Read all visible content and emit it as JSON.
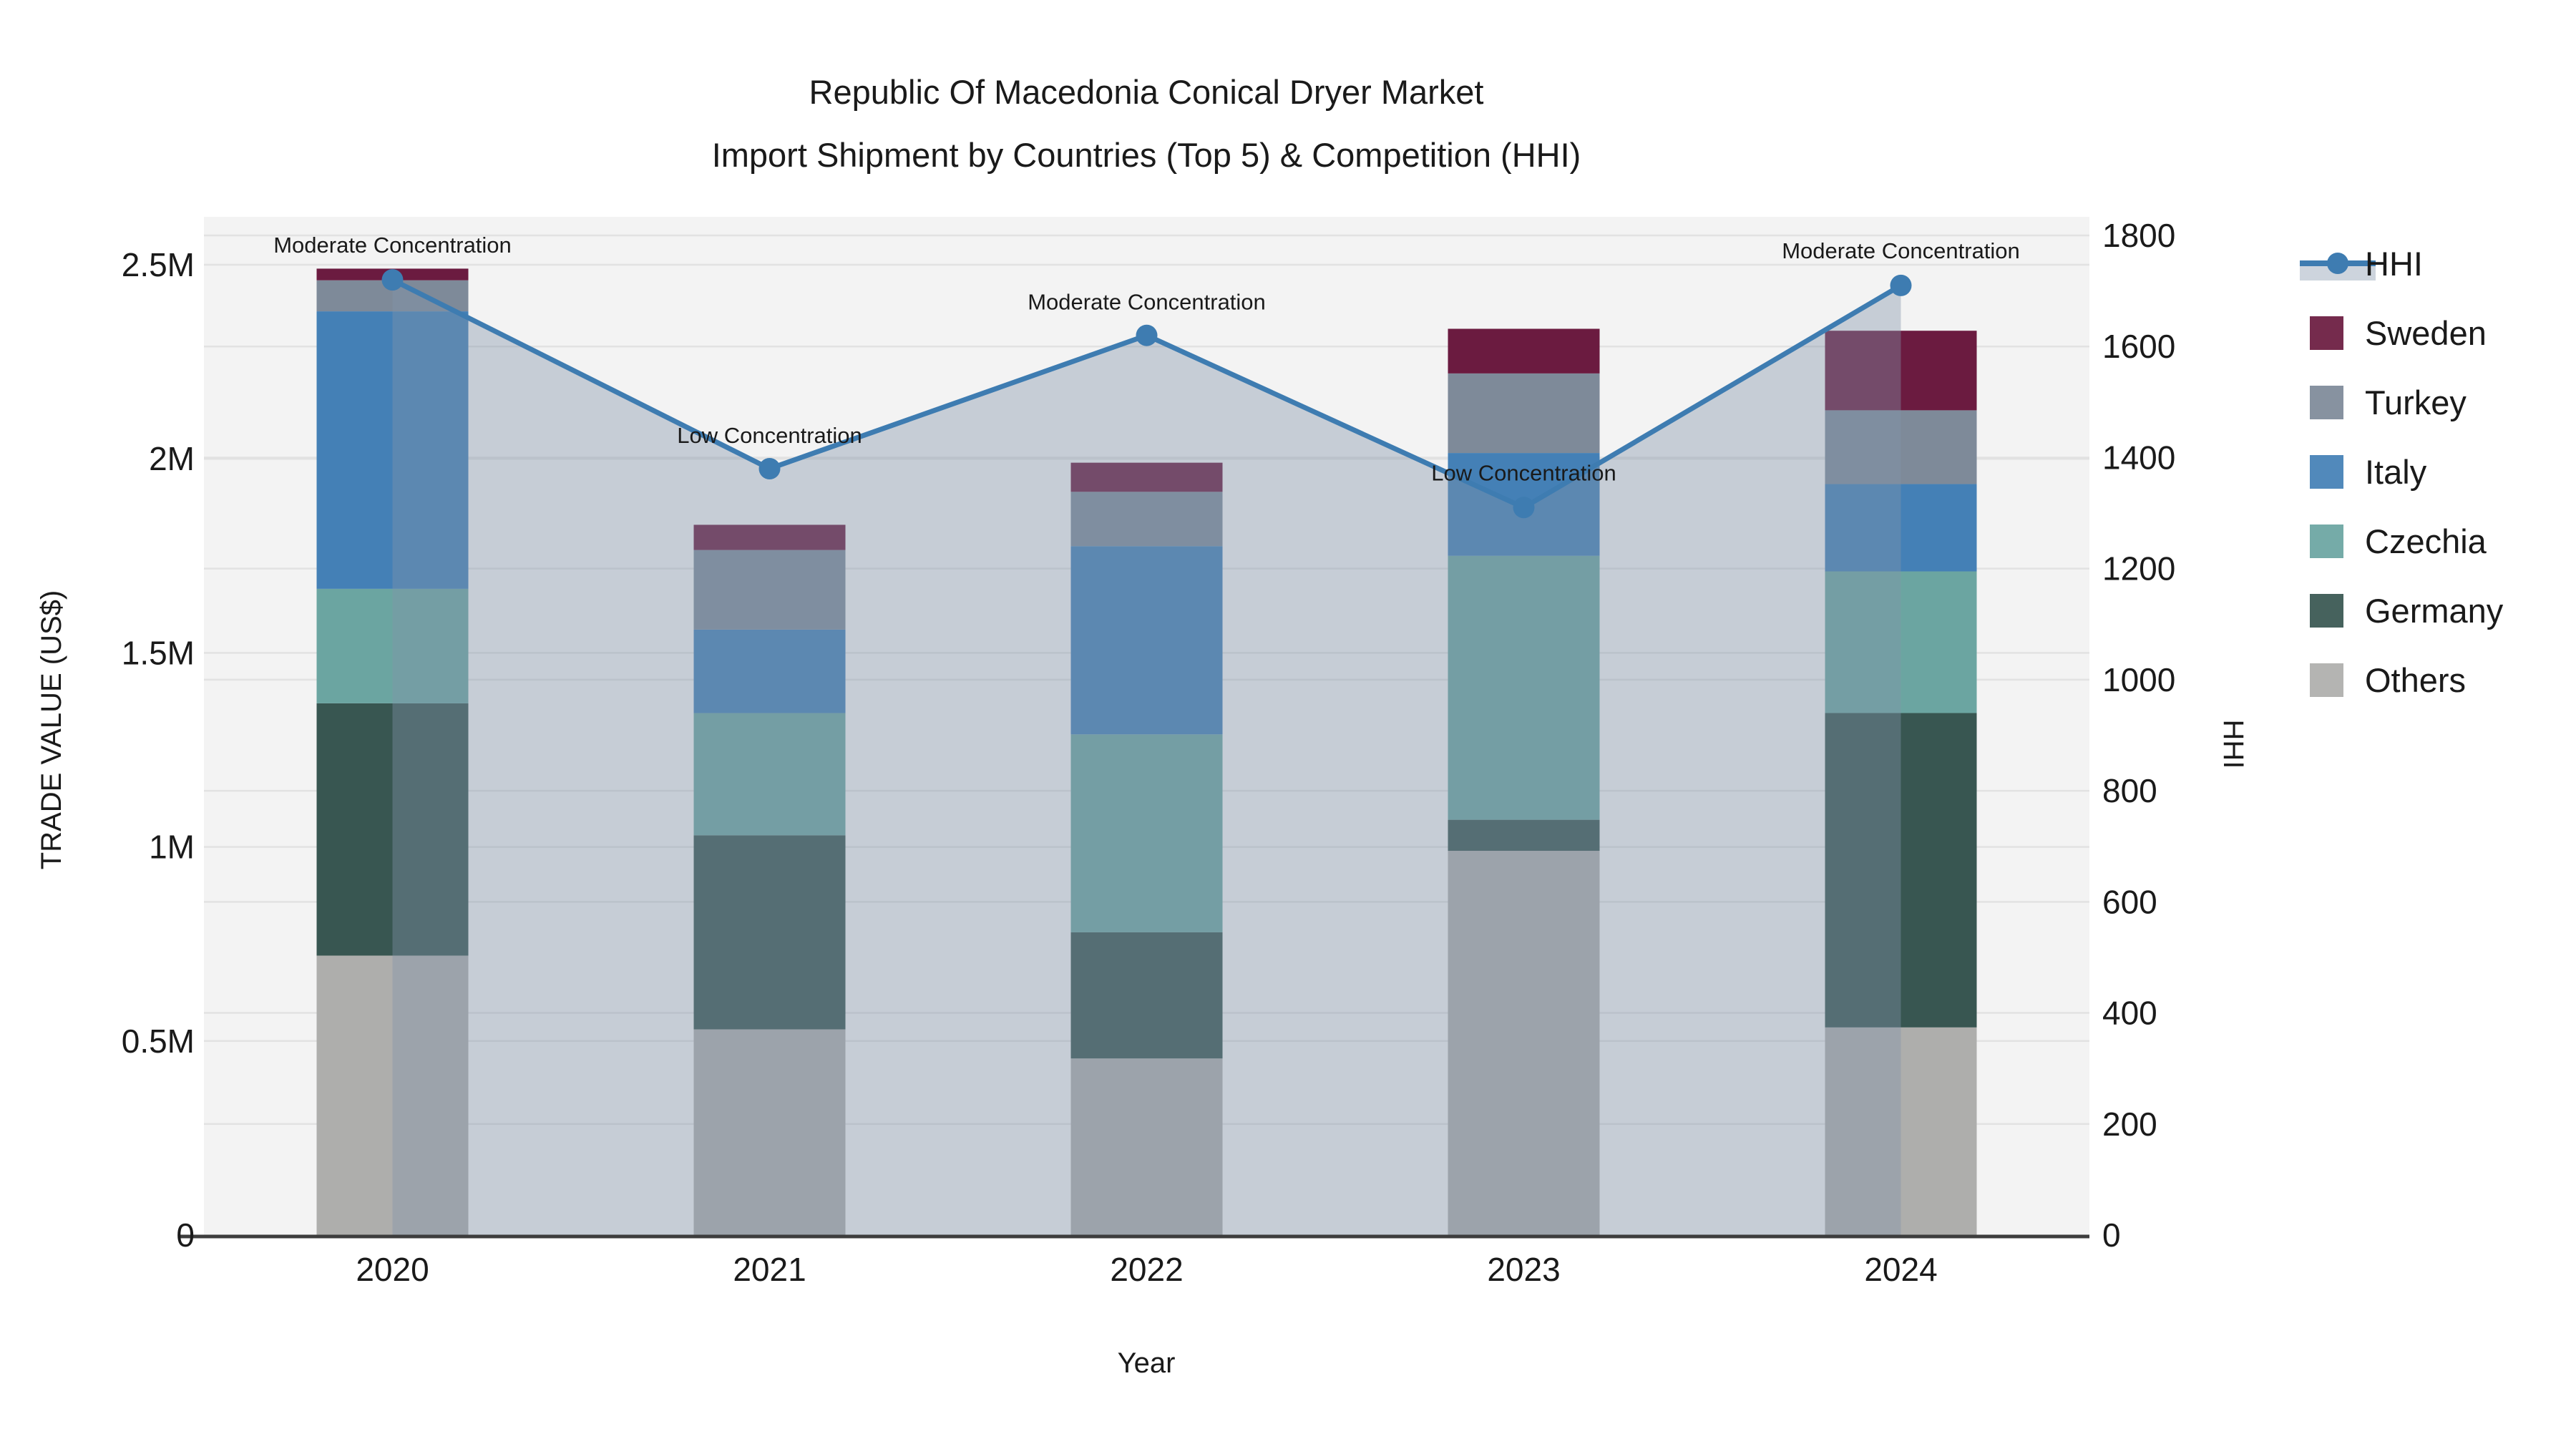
{
  "title": {
    "line1": "Republic Of Macedonia Conical Dryer Market",
    "line2": "Import Shipment by Countries (Top 5) & Competition (HHI)"
  },
  "axes": {
    "left": {
      "label": "TRADE VALUE (US$)",
      "ticks": [
        {
          "label": "0",
          "value": 0
        },
        {
          "label": "0.5M",
          "value": 500000
        },
        {
          "label": "1M",
          "value": 1000000
        },
        {
          "label": "1.5M",
          "value": 1500000
        },
        {
          "label": "2M",
          "value": 2000000
        },
        {
          "label": "2.5M",
          "value": 2500000
        }
      ],
      "range": [
        0,
        2500000
      ]
    },
    "right": {
      "label": "HHI",
      "ticks": [
        {
          "label": "0",
          "value": 0
        },
        {
          "label": "200",
          "value": 200
        },
        {
          "label": "400",
          "value": 400
        },
        {
          "label": "600",
          "value": 600
        },
        {
          "label": "800",
          "value": 800
        },
        {
          "label": "1000",
          "value": 1000
        },
        {
          "label": "1200",
          "value": 1200
        },
        {
          "label": "1400",
          "value": 1400
        },
        {
          "label": "1600",
          "value": 1600
        },
        {
          "label": "1800",
          "value": 1800
        }
      ],
      "range": [
        0,
        1800
      ]
    },
    "x": {
      "label": "Year",
      "categories": [
        "2020",
        "2021",
        "2022",
        "2023",
        "2024"
      ]
    }
  },
  "legend": [
    {
      "label": "HHI",
      "type": "line",
      "color": "#3E7CB1"
    },
    {
      "label": "Sweden",
      "type": "box",
      "color": "#6B1B40"
    },
    {
      "label": "Turkey",
      "type": "box",
      "color": "#7E8A99"
    },
    {
      "label": "Italy",
      "type": "box",
      "color": "#4480B6"
    },
    {
      "label": "Czechia",
      "type": "box",
      "color": "#6BA5A1"
    },
    {
      "label": "Germany",
      "type": "box",
      "color": "#385651"
    },
    {
      "label": "Others",
      "type": "box",
      "color": "#AEAEAC"
    }
  ],
  "chart_data": {
    "type": "bar+line",
    "title": "Republic Of Macedonia Conical Dryer Market — Import Shipment by Countries (Top 5) & Competition (HHI)",
    "categories": [
      "2020",
      "2021",
      "2022",
      "2023",
      "2024"
    ],
    "stack_order_note": "series listed bottom-to-top of stack; values in US$ trade value",
    "series": [
      {
        "name": "Others",
        "color": "#AEAEAC",
        "values": [
          720000,
          530000,
          455000,
          990000,
          535000
        ]
      },
      {
        "name": "Germany",
        "color": "#385651",
        "values": [
          650000,
          500000,
          325000,
          80000,
          810000
        ]
      },
      {
        "name": "Czechia",
        "color": "#6BA5A1",
        "values": [
          295000,
          315000,
          510000,
          680000,
          365000
        ]
      },
      {
        "name": "Italy",
        "color": "#4480B6",
        "values": [
          715000,
          215000,
          485000,
          265000,
          225000
        ]
      },
      {
        "name": "Turkey",
        "color": "#7E8A99",
        "values": [
          80000,
          205000,
          140000,
          205000,
          190000
        ]
      },
      {
        "name": "Sweden",
        "color": "#6B1B40",
        "values": [
          30000,
          65000,
          75000,
          115000,
          205000
        ]
      }
    ],
    "bar_totals": [
      2490000,
      1830000,
      1990000,
      2335000,
      2330000
    ],
    "line_series": {
      "name": "HHI",
      "axis": "right",
      "color": "#3E7CB1",
      "area_fill": "rgba(131,148,170,0.40)",
      "values": [
        1720,
        1380,
        1620,
        1310,
        1710
      ]
    },
    "annotations": [
      {
        "text": "Moderate Concentration",
        "category": "2020"
      },
      {
        "text": "Low Concentration",
        "category": "2021"
      },
      {
        "text": "Moderate Concentration",
        "category": "2022"
      },
      {
        "text": "Low Concentration",
        "category": "2023"
      },
      {
        "text": "Moderate Concentration",
        "category": "2024"
      }
    ],
    "xlabel": "Year",
    "ylabel_left": "TRADE VALUE (US$)",
    "ylabel_right": "HHI",
    "ylim_left": [
      0,
      2500000
    ],
    "ylim_right": [
      0,
      1800
    ],
    "grid": true,
    "legend_position": "right"
  },
  "style": {
    "plot_bg": "#F3F3F3",
    "grid_color": "#E2E2E2",
    "baseline_color": "#3D3D3D",
    "text_color": "#1a1a1a"
  }
}
